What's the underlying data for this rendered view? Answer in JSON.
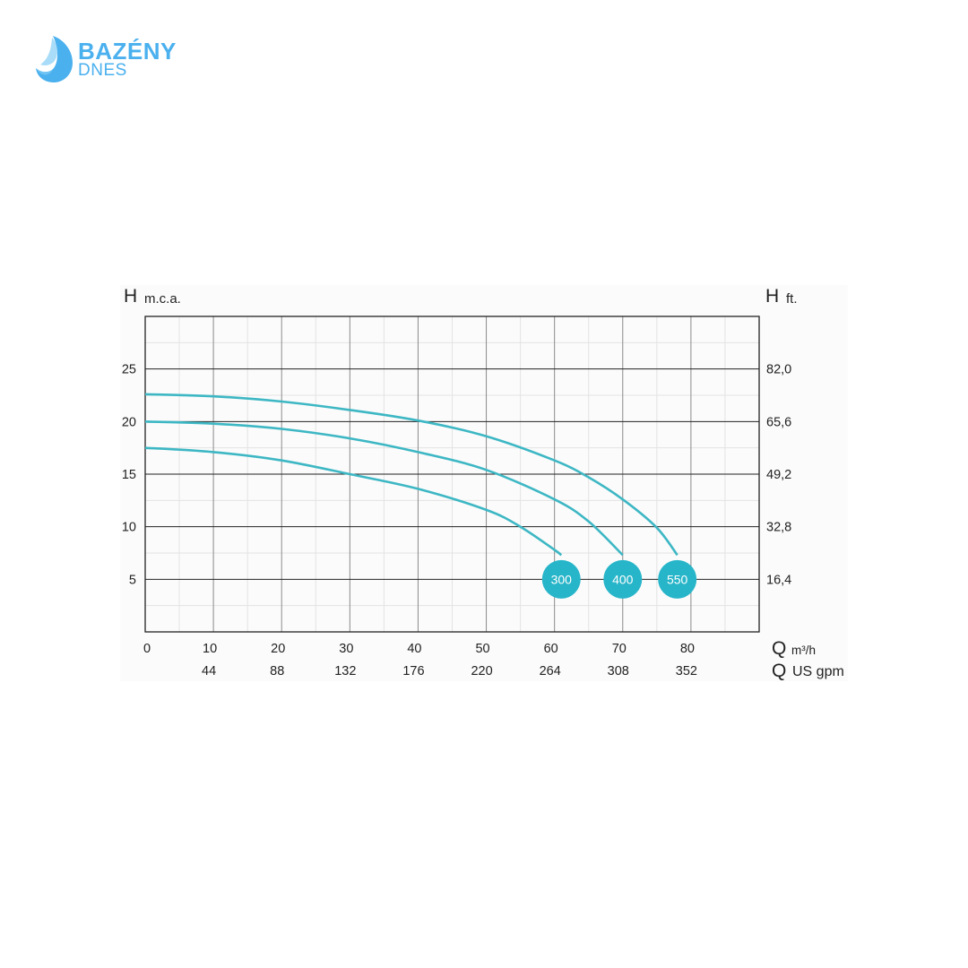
{
  "logo": {
    "line1": "BAZÉNY",
    "line2": "DNES",
    "color": "#4ab0ee"
  },
  "chart_data": {
    "type": "line",
    "title": "",
    "ylabel_symbol": "H",
    "ylabel_unit": "m.c.a.",
    "ylabel_right_symbol": "H",
    "ylabel_right_unit": "ft.",
    "xlabel_symbol": "Q",
    "xlabel_unit": "m³/h",
    "xlabel2_symbol": "Q",
    "xlabel2_unit": "US gpm",
    "xlim": [
      0,
      90
    ],
    "ylim": [
      0,
      30
    ],
    "grid": true,
    "x_ticks": [
      "0",
      "10",
      "20",
      "30",
      "40",
      "50",
      "60",
      "70",
      "80"
    ],
    "x_ticks_gpm": [
      {
        "q": 10,
        "label": "44"
      },
      {
        "q": 20,
        "label": "88"
      },
      {
        "q": 30,
        "label": "132"
      },
      {
        "q": 40,
        "label": "176"
      },
      {
        "q": 50,
        "label": "220"
      },
      {
        "q": 60,
        "label": "264"
      },
      {
        "q": 70,
        "label": "308"
      },
      {
        "q": 80,
        "label": "352"
      }
    ],
    "y_ticks": [
      {
        "h": 25,
        "label": "25"
      },
      {
        "h": 20,
        "label": "20"
      },
      {
        "h": 15,
        "label": "15"
      },
      {
        "h": 10,
        "label": "10"
      },
      {
        "h": 5,
        "label": "5"
      }
    ],
    "y_ticks_ft": [
      {
        "h": 25,
        "label": "82,0"
      },
      {
        "h": 20,
        "label": "65,6"
      },
      {
        "h": 15,
        "label": "49,2"
      },
      {
        "h": 10,
        "label": "32,8"
      },
      {
        "h": 5,
        "label": "16,4"
      }
    ],
    "series": [
      {
        "name": "300",
        "color": "#3db7c4",
        "x": [
          0,
          10,
          20,
          30,
          40,
          50,
          55,
          60,
          61
        ],
        "y": [
          17.5,
          17.1,
          16.3,
          15.0,
          13.6,
          11.6,
          10.0,
          7.8,
          7.3
        ],
        "label_at": [
          61,
          5
        ]
      },
      {
        "name": "400",
        "color": "#3db7c4",
        "x": [
          0,
          10,
          20,
          30,
          40,
          50,
          60,
          65,
          70
        ],
        "y": [
          20.0,
          19.8,
          19.3,
          18.4,
          17.1,
          15.4,
          12.6,
          10.5,
          7.3
        ],
        "label_at": [
          70,
          5
        ]
      },
      {
        "name": "550",
        "color": "#3db7c4",
        "x": [
          0,
          10,
          20,
          30,
          40,
          50,
          60,
          65,
          70,
          75,
          78
        ],
        "y": [
          22.6,
          22.4,
          21.9,
          21.1,
          20.1,
          18.6,
          16.3,
          14.7,
          12.6,
          9.9,
          7.3
        ],
        "label_at": [
          78,
          5
        ]
      }
    ]
  }
}
